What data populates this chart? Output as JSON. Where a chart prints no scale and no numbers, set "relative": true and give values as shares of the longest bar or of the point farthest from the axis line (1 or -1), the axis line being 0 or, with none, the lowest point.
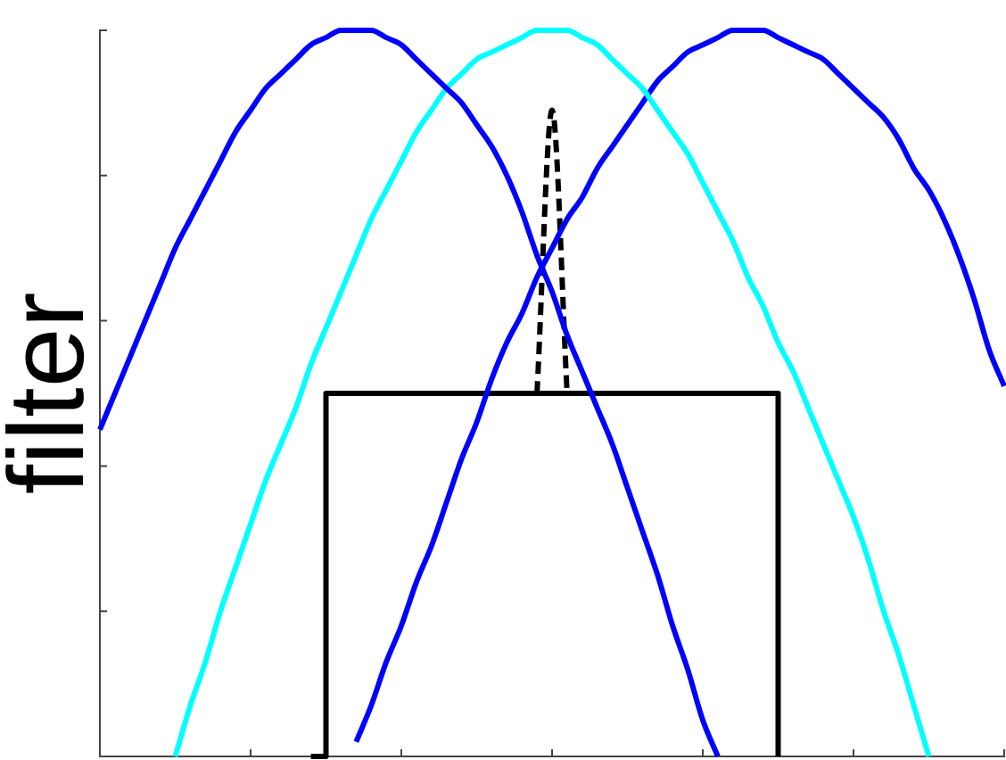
{
  "chart_data": {
    "type": "line",
    "relative": true,
    "ylabel": "filter",
    "categories": [
      null,
      null,
      null,
      null,
      null,
      null,
      null,
      null,
      null,
      null,
      null,
      null,
      null,
      null,
      null,
      null,
      null,
      null,
      null,
      null,
      null,
      null,
      null,
      null,
      null,
      null,
      null,
      null,
      null,
      null,
      null,
      null,
      null,
      null,
      null,
      null,
      null,
      null,
      null,
      null,
      null,
      null,
      null,
      null,
      null,
      null,
      null,
      null,
      null,
      null,
      null,
      null,
      null,
      null,
      null,
      null,
      null,
      null,
      null,
      null,
      null
    ],
    "series": [
      {
        "color": "#0000ff",
        "values": [
          0.45,
          0.5,
          0.55,
          0.6,
          0.65,
          0.7,
          0.74,
          0.78,
          0.82,
          0.86,
          0.89,
          0.92,
          0.94,
          0.96,
          0.98,
          0.99,
          1,
          1,
          1,
          0.99,
          0.98,
          0.96,
          0.94,
          0.92,
          0.9,
          0.87,
          0.84,
          0.8,
          0.75,
          0.69,
          0.64,
          0.58,
          0.53,
          0.48,
          0.43,
          0.37,
          0.31,
          0.25,
          0.18,
          0.12,
          0.05,
          0,
          null,
          null,
          null,
          null,
          null,
          null,
          null,
          null,
          null,
          null,
          null,
          null,
          null,
          null,
          null,
          null,
          null,
          null,
          null
        ]
      },
      {
        "color": "#00ffff",
        "values": [
          null,
          null,
          null,
          null,
          null,
          0,
          0.07,
          0.13,
          0.2,
          0.26,
          0.32,
          0.38,
          0.43,
          0.48,
          0.54,
          0.59,
          0.64,
          0.69,
          0.74,
          0.78,
          0.82,
          0.86,
          0.89,
          0.92,
          0.94,
          0.96,
          0.97,
          0.98,
          0.99,
          1,
          1,
          1,
          0.99,
          0.98,
          0.96,
          0.94,
          0.92,
          0.89,
          0.86,
          0.83,
          0.79,
          0.75,
          0.71,
          0.66,
          0.62,
          0.57,
          0.53,
          0.48,
          0.43,
          0.38,
          0.33,
          0.27,
          0.2,
          0.14,
          0.07,
          0,
          null,
          null,
          null,
          null,
          null
        ]
      },
      {
        "color": "#0000ff",
        "values": [
          null,
          null,
          null,
          null,
          null,
          null,
          null,
          null,
          null,
          null,
          null,
          null,
          null,
          null,
          null,
          null,
          null,
          0.02,
          0.07,
          0.13,
          0.18,
          0.24,
          0.29,
          0.35,
          0.41,
          0.46,
          0.52,
          0.57,
          0.61,
          0.66,
          0.7,
          0.74,
          0.77,
          0.81,
          0.84,
          0.87,
          0.9,
          0.93,
          0.95,
          0.97,
          0.98,
          0.99,
          1,
          1,
          1,
          0.99,
          0.98,
          0.97,
          0.96,
          0.94,
          0.92,
          0.9,
          0.88,
          0.85,
          0.81,
          0.78,
          0.74,
          0.69,
          0.63,
          0.56,
          0.51
        ]
      },
      {
        "type": "step",
        "color": "#000000",
        "values": [
          null,
          null,
          null,
          null,
          null,
          null,
          null,
          null,
          null,
          null,
          null,
          null,
          null,
          null,
          0,
          0.5,
          0.5,
          0.5,
          0.5,
          0.5,
          0.5,
          0.5,
          0.5,
          0.5,
          0.5,
          0.5,
          0.5,
          0.5,
          0.5,
          0.5,
          0.5,
          0.5,
          0.5,
          0.5,
          0.5,
          0.5,
          0.5,
          0.5,
          0.5,
          0.5,
          0.5,
          0.5,
          0.5,
          0.5,
          0.5,
          0,
          null,
          null,
          null,
          null,
          null,
          null,
          null,
          null,
          null,
          null,
          null,
          null,
          null,
          null,
          null
        ]
      },
      {
        "color": "#000000",
        "line_style": "dashed",
        "values": [
          null,
          null,
          null,
          null,
          null,
          null,
          null,
          null,
          null,
          null,
          null,
          null,
          null,
          null,
          null,
          null,
          null,
          null,
          null,
          null,
          null,
          null,
          null,
          null,
          null,
          null,
          null,
          null,
          null,
          0.5,
          0.89,
          0.5,
          null,
          null,
          null,
          null,
          null,
          null,
          null,
          null,
          null,
          null,
          null,
          null,
          null,
          null,
          null,
          null,
          null,
          null,
          null,
          null,
          null,
          null,
          null,
          null,
          null,
          null,
          null,
          null,
          null
        ]
      }
    ]
  }
}
